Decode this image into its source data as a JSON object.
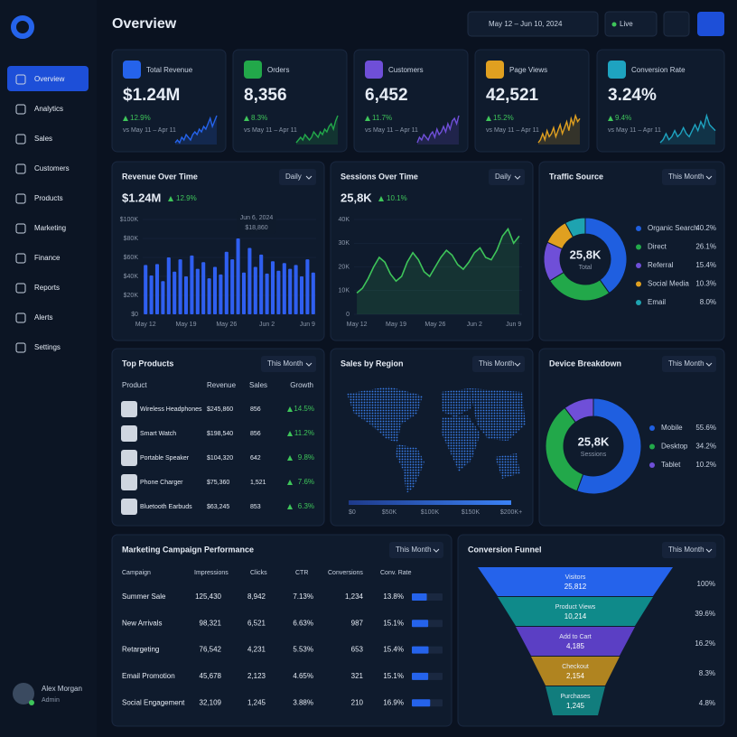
{
  "sidebar": {
    "nav": [
      "Overview",
      "Analytics",
      "Sales",
      "Customers",
      "Products",
      "Marketing",
      "Finance",
      "Reports",
      "Alerts",
      "Settings"
    ],
    "user": {
      "name": "Alex Morgan",
      "role": "Admin"
    }
  },
  "header": {
    "title": "Overview",
    "date_range": "May 12 – Jun 10, 2024",
    "live": "Live"
  },
  "kpis": [
    {
      "title": "Total Revenue",
      "value": "$1.24M",
      "change": "12.9%",
      "period": "vs May 11 – Apr 11",
      "color": "#2563eb",
      "spark": [
        5,
        6,
        5,
        7,
        6,
        8,
        7,
        6,
        8,
        9,
        8,
        10,
        9,
        11,
        10,
        12,
        14,
        11,
        13,
        15
      ]
    },
    {
      "title": "Orders",
      "value": "8,356",
      "change": "8.3%",
      "period": "vs May 11 – Apr 11",
      "color": "#22a84a",
      "spark": [
        5,
        6,
        7,
        6,
        8,
        7,
        6,
        7,
        9,
        8,
        7,
        9,
        8,
        10,
        9,
        11,
        12,
        10,
        13,
        15
      ]
    },
    {
      "title": "Customers",
      "value": "6,452",
      "change": "11.7%",
      "period": "vs May 11 – Apr 11",
      "color": "#6f4fd8",
      "spark": [
        4,
        6,
        5,
        7,
        6,
        5,
        7,
        8,
        6,
        9,
        7,
        8,
        10,
        8,
        11,
        9,
        12,
        13,
        11,
        14
      ]
    },
    {
      "title": "Page Views",
      "value": "42,521",
      "change": "15.2%",
      "period": "vs May 11 – Apr 11",
      "color": "#e0a020",
      "spark": [
        4,
        5,
        7,
        5,
        8,
        6,
        7,
        9,
        6,
        8,
        10,
        7,
        9,
        11,
        8,
        12,
        10,
        13,
        11,
        12
      ]
    },
    {
      "title": "Conversion Rate",
      "value": "3.24%",
      "change": "9.4%",
      "period": "vs May 11 – Apr 11",
      "color": "#1ea3c0",
      "spark": [
        5,
        6,
        8,
        6,
        7,
        9,
        7,
        8,
        10,
        8,
        7,
        9,
        11,
        9,
        12,
        10,
        14,
        11,
        10,
        9
      ]
    }
  ],
  "revenue": {
    "type": "bar",
    "title": "Revenue Over Time",
    "filter": "Daily",
    "value": "$1.24M",
    "change": "12.9%",
    "tooltip_date": "Jun 6, 2024",
    "tooltip_value": "$18,860",
    "color": "#2f5ff0",
    "categories": [
      "May 12",
      null,
      null,
      null,
      null,
      null,
      null,
      "May 19",
      null,
      null,
      null,
      null,
      null,
      null,
      "May 26",
      null,
      null,
      null,
      null,
      null,
      null,
      "Jun 2",
      null,
      null,
      null,
      null,
      null,
      null,
      "Jun 9",
      null
    ],
    "values": [
      52,
      41,
      53,
      35,
      60,
      45,
      58,
      40,
      62,
      48,
      55,
      38,
      50,
      42,
      66,
      58,
      80,
      44,
      70,
      50,
      63,
      43,
      56,
      46,
      54,
      48,
      52,
      40,
      58,
      44
    ],
    "ylim": [
      0,
      100
    ],
    "yticks": [
      {
        "value": 0,
        "label": "$0"
      },
      {
        "value": 20,
        "label": "$20K"
      },
      {
        "value": 40,
        "label": "$40K"
      },
      {
        "value": 60,
        "label": "$60K"
      },
      {
        "value": 80,
        "label": "$80K"
      },
      {
        "value": 100,
        "label": "$100K"
      }
    ]
  },
  "sessions": {
    "type": "line",
    "title": "Sessions Over Time",
    "filter": "Daily",
    "value": "25,8K",
    "change": "10.1%",
    "color": "#3ec55a",
    "categories": [
      "May 12",
      null,
      null,
      null,
      null,
      null,
      null,
      "May 19",
      null,
      null,
      null,
      null,
      null,
      null,
      "May 26",
      null,
      null,
      null,
      null,
      null,
      null,
      "Jun 2",
      null,
      null,
      null,
      null,
      null,
      null,
      "Jun 9",
      null
    ],
    "values": [
      9,
      11,
      15,
      20,
      24,
      22,
      17,
      14,
      16,
      22,
      26,
      23,
      18,
      16,
      20,
      24,
      27,
      25,
      21,
      19,
      22,
      26,
      28,
      24,
      23,
      27,
      33,
      36,
      30,
      33
    ],
    "ylim": [
      0,
      40
    ],
    "yticks": [
      0,
      {
        "value": 10,
        "label": "10K"
      },
      {
        "value": 20,
        "label": "20K"
      },
      {
        "value": 30,
        "label": "30K"
      },
      {
        "value": 40,
        "label": "40K"
      }
    ]
  },
  "traffic": {
    "type": "donut",
    "title": "Traffic Source",
    "filter": "This Month",
    "center": "25,8K",
    "center_label": "Total",
    "categories": [
      "Organic Search",
      "Direct",
      "Referral",
      "Social Media",
      "Email"
    ],
    "values": [
      40.2,
      26.1,
      15.4,
      10.3,
      8.0
    ],
    "value_labels": [
      "40.2%",
      "26.1%",
      "15.4%",
      "10.3%",
      "8.0%"
    ],
    "colors": [
      "#1f5fe0",
      "#22a84a",
      "#6f4fd8",
      "#e0a020",
      "#1ea3b0"
    ]
  },
  "products": {
    "title": "Top Products",
    "filter": "This Month",
    "columns": [
      "Product",
      "Revenue",
      "Sales",
      "Growth"
    ],
    "rows": [
      [
        "Wireless Headphones",
        "$245,860",
        "856",
        "14.5%"
      ],
      [
        "Smart Watch",
        "$198,540",
        "856",
        "11.2%"
      ],
      [
        "Portable Speaker",
        "$104,320",
        "642",
        "9.8%"
      ],
      [
        "Phone Charger",
        "$75,360",
        "1,521",
        "7.6%"
      ],
      [
        "Bluetooth Earbuds",
        "$63,245",
        "853",
        "6.3%"
      ]
    ]
  },
  "region": {
    "title": "Sales by Region",
    "filter": "This Month",
    "scale": [
      "$0",
      "$50K",
      "$100K",
      "$150K",
      "$200K+"
    ]
  },
  "device": {
    "type": "donut",
    "title": "Device Breakdown",
    "filter": "This Month",
    "center": "25,8K",
    "center_label": "Sessions",
    "categories": [
      "Mobile",
      "Desktop",
      "Tablet"
    ],
    "values": [
      55.6,
      34.2,
      10.2
    ],
    "value_labels": [
      "55.6%",
      "34.2%",
      "10.2%"
    ],
    "colors": [
      "#1f5fe0",
      "#22a84a",
      "#6f4fd8"
    ]
  },
  "campaigns": {
    "title": "Marketing Campaign Performance",
    "filter": "This Month",
    "columns": [
      "Campaign",
      "Impressions",
      "Clicks",
      "CTR",
      "Conversions",
      "Conv. Rate"
    ],
    "rows": [
      [
        "Summer Sale",
        "125,430",
        "8,942",
        "7.13%",
        "1,234",
        "13.8%"
      ],
      [
        "New Arrivals",
        "98,321",
        "6,521",
        "6.63%",
        "987",
        "15.1%"
      ],
      [
        "Retargeting",
        "76,542",
        "4,231",
        "5.53%",
        "653",
        "15.4%"
      ],
      [
        "Email Promotion",
        "45,678",
        "2,123",
        "4.65%",
        "321",
        "15.1%"
      ],
      [
        "Social Engagement",
        "32,109",
        "1,245",
        "3.88%",
        "210",
        "16.9%"
      ]
    ]
  },
  "funnel": {
    "title": "Conversion Funnel",
    "filter": "This Month",
    "stages": [
      {
        "name": "Visitors",
        "value": "25,812",
        "percent": "100%",
        "color": "#2563eb"
      },
      {
        "name": "Product Views",
        "value": "10,214",
        "percent": "39.6%",
        "color": "#0f8a8a"
      },
      {
        "name": "Add to Cart",
        "value": "4,185",
        "percent": "16.2%",
        "color": "#5b3fc4"
      },
      {
        "name": "Checkout",
        "value": "2,154",
        "percent": "8.3%",
        "color": "#b08420"
      },
      {
        "name": "Purchases",
        "value": "1,245",
        "percent": "4.8%",
        "color": "#117d7d"
      }
    ]
  }
}
